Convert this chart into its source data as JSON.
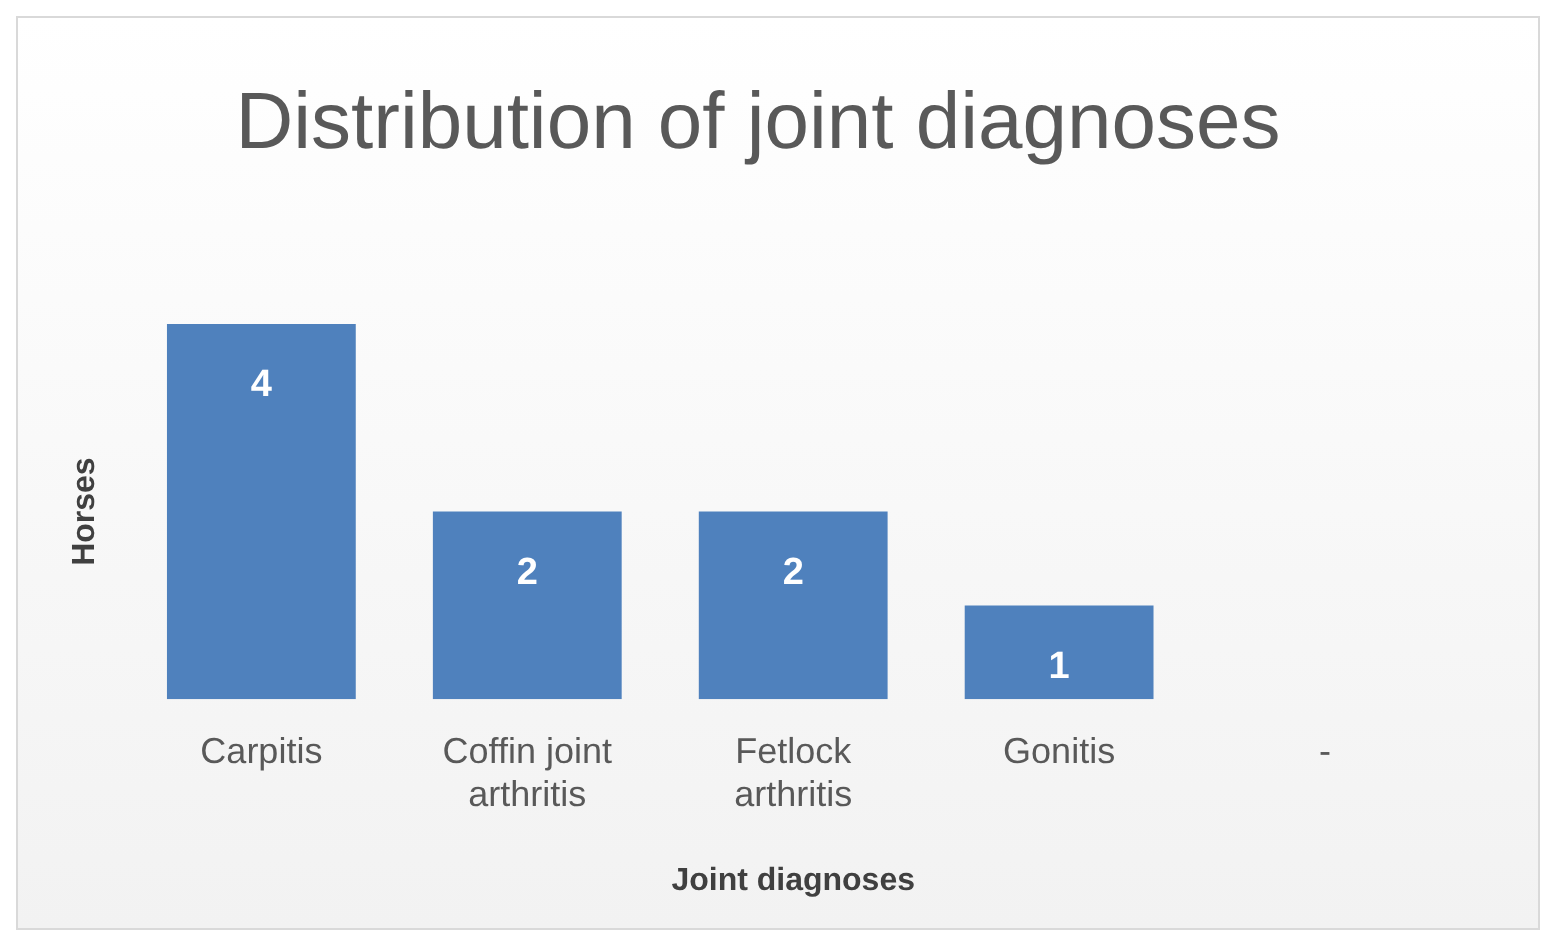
{
  "chart_data": {
    "type": "bar",
    "title": "Distribution of joint diagnoses",
    "xlabel": "Joint diagnoses",
    "ylabel": "Horses",
    "categories": [
      "Carpitis",
      "Coffin joint arthritis",
      "Fetlock arthritis",
      "Gonitis",
      "-"
    ],
    "values": [
      4,
      2,
      2,
      1,
      null
    ],
    "color": "#4f81bd",
    "data_labels": true,
    "grid": false,
    "legend": false
  }
}
